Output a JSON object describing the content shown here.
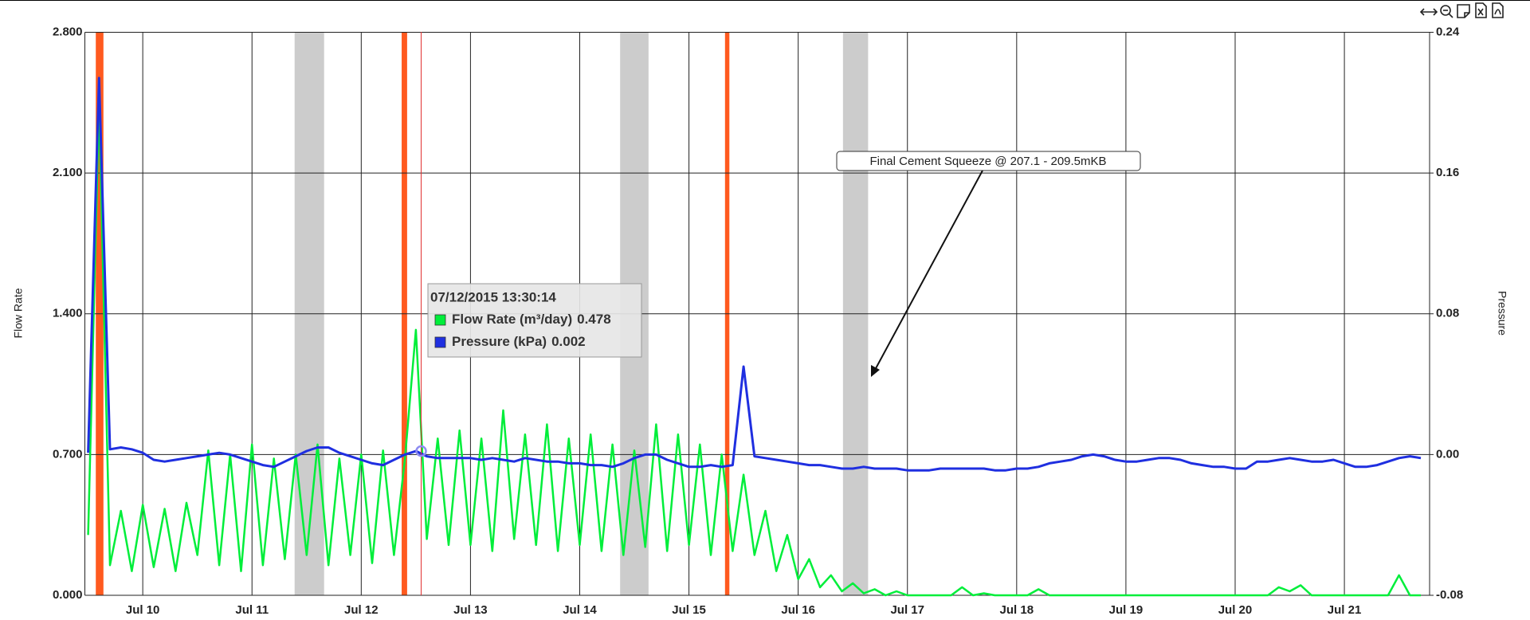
{
  "chart_data": {
    "type": "line",
    "x": [
      9.5,
      9.6,
      9.7,
      9.8,
      9.9,
      10.0,
      10.1,
      10.2,
      10.3,
      10.4,
      10.5,
      10.6,
      10.7,
      10.8,
      10.9,
      11.0,
      11.1,
      11.2,
      11.3,
      11.4,
      11.5,
      11.6,
      11.7,
      11.8,
      11.9,
      12.0,
      12.1,
      12.2,
      12.3,
      12.4,
      12.5,
      12.6,
      12.7,
      12.8,
      12.9,
      13.0,
      13.1,
      13.2,
      13.3,
      13.4,
      13.5,
      13.6,
      13.7,
      13.8,
      13.9,
      14.0,
      14.1,
      14.2,
      14.3,
      14.4,
      14.5,
      14.6,
      14.7,
      14.8,
      14.9,
      15.0,
      15.1,
      15.2,
      15.3,
      15.4,
      15.5,
      15.6,
      15.7,
      15.8,
      15.9,
      16.0,
      16.1,
      16.2,
      16.3,
      16.4,
      16.5,
      16.6,
      16.7,
      16.8,
      16.9,
      17.0,
      17.1,
      17.2,
      17.3,
      17.4,
      17.5,
      17.6,
      17.7,
      17.8,
      17.9,
      18.0,
      18.1,
      18.2,
      18.3,
      18.4,
      18.5,
      18.6,
      18.7,
      18.8,
      18.9,
      19.0,
      19.1,
      19.2,
      19.3,
      19.4,
      19.5,
      19.6,
      19.7,
      19.8,
      19.9,
      20.0,
      20.1,
      20.2,
      20.3,
      20.4,
      20.5,
      20.6,
      20.7,
      20.8,
      20.9,
      21.0,
      21.1,
      21.2,
      21.3,
      21.4,
      21.5,
      21.6,
      21.7
    ],
    "series": [
      {
        "name": "Flow Rate (m³/day)",
        "color": "#00ee3a",
        "axis": "y",
        "values": [
          0.3,
          2.45,
          0.15,
          0.42,
          0.12,
          0.45,
          0.14,
          0.43,
          0.12,
          0.46,
          0.2,
          0.72,
          0.15,
          0.7,
          0.12,
          0.75,
          0.15,
          0.68,
          0.18,
          0.7,
          0.2,
          0.75,
          0.15,
          0.68,
          0.2,
          0.7,
          0.16,
          0.72,
          0.2,
          0.68,
          1.32,
          0.28,
          0.78,
          0.25,
          0.82,
          0.25,
          0.78,
          0.22,
          0.92,
          0.28,
          0.8,
          0.25,
          0.85,
          0.22,
          0.78,
          0.25,
          0.8,
          0.22,
          0.75,
          0.2,
          0.72,
          0.24,
          0.85,
          0.22,
          0.8,
          0.25,
          0.75,
          0.2,
          0.7,
          0.22,
          0.6,
          0.2,
          0.42,
          0.12,
          0.3,
          0.08,
          0.18,
          0.04,
          0.1,
          0.02,
          0.06,
          0.01,
          0.03,
          0,
          0.02,
          0,
          0,
          0,
          0,
          0,
          0.04,
          0,
          0.01,
          0,
          0,
          0,
          0,
          0.03,
          0,
          0,
          0,
          0,
          0,
          0,
          0,
          0,
          0,
          0,
          0,
          0,
          0,
          0,
          0,
          0,
          0,
          0,
          0,
          0,
          0,
          0.04,
          0.02,
          0.05,
          0,
          0,
          0,
          0,
          0,
          0,
          0,
          0,
          0.1,
          0,
          0
        ]
      },
      {
        "name": "Pressure (kPa)",
        "color": "#1f2fe0",
        "axis": "y2",
        "values": [
          0.001,
          0.214,
          0.003,
          0.004,
          0.003,
          0.001,
          -0.003,
          -0.004,
          -0.003,
          -0.002,
          -0.001,
          0.0,
          0.001,
          0.0,
          -0.002,
          -0.004,
          -0.006,
          -0.007,
          -0.004,
          -0.001,
          0.002,
          0.004,
          0.004,
          0.001,
          -0.001,
          -0.003,
          -0.005,
          -0.006,
          -0.003,
          0.0,
          0.002,
          -0.001,
          -0.002,
          -0.002,
          -0.002,
          -0.002,
          -0.003,
          -0.002,
          -0.003,
          -0.004,
          -0.002,
          -0.003,
          -0.004,
          -0.004,
          -0.005,
          -0.005,
          -0.006,
          -0.006,
          -0.007,
          -0.005,
          -0.002,
          0.0,
          0.0,
          -0.003,
          -0.005,
          -0.007,
          -0.007,
          -0.006,
          -0.007,
          -0.006,
          0.05,
          -0.001,
          -0.002,
          -0.003,
          -0.004,
          -0.005,
          -0.006,
          -0.006,
          -0.007,
          -0.008,
          -0.008,
          -0.007,
          -0.008,
          -0.008,
          -0.008,
          -0.009,
          -0.009,
          -0.009,
          -0.008,
          -0.008,
          -0.008,
          -0.008,
          -0.008,
          -0.009,
          -0.009,
          -0.008,
          -0.008,
          -0.007,
          -0.005,
          -0.004,
          -0.003,
          -0.001,
          0.0,
          -0.001,
          -0.003,
          -0.004,
          -0.004,
          -0.003,
          -0.002,
          -0.002,
          -0.003,
          -0.005,
          -0.006,
          -0.007,
          -0.007,
          -0.008,
          -0.008,
          -0.004,
          -0.004,
          -0.003,
          -0.002,
          -0.003,
          -0.004,
          -0.004,
          -0.003,
          -0.005,
          -0.007,
          -0.007,
          -0.006,
          -0.004,
          -0.002,
          -0.001,
          -0.002
        ]
      }
    ],
    "xlim": [
      9.47,
      21.78
    ],
    "xticks": [
      {
        "value": 10,
        "label": "Jul 10"
      },
      {
        "value": 11,
        "label": "Jul 11"
      },
      {
        "value": 12,
        "label": "Jul 12"
      },
      {
        "value": 13,
        "label": "Jul 13"
      },
      {
        "value": 14,
        "label": "Jul 14"
      },
      {
        "value": 15,
        "label": "Jul 15"
      },
      {
        "value": 16,
        "label": "Jul 16"
      },
      {
        "value": 17,
        "label": "Jul 17"
      },
      {
        "value": 18,
        "label": "Jul 18"
      },
      {
        "value": 19,
        "label": "Jul 19"
      },
      {
        "value": 20,
        "label": "Jul 20"
      },
      {
        "value": 21,
        "label": "Jul 21"
      }
    ],
    "ylim": [
      0,
      2.8
    ],
    "yticks": [
      {
        "value": 0,
        "label": "0.000"
      },
      {
        "value": 0.7,
        "label": "0.700"
      },
      {
        "value": 1.4,
        "label": "1.400"
      },
      {
        "value": 2.1,
        "label": "2.100"
      },
      {
        "value": 2.8,
        "label": "2.800"
      }
    ],
    "y2lim": [
      -0.08,
      0.24
    ],
    "y2ticks": [
      -0.08,
      {
        "value": 0,
        "label": "0.00"
      },
      0.08,
      0.16,
      0.24
    ],
    "ylabel": "Flow Rate",
    "y2label": "Pressure",
    "grid": true,
    "plot_bands": [
      {
        "from": 9.57,
        "to": 9.64,
        "color": "#ff5a1f"
      },
      {
        "from": 11.39,
        "to": 11.66,
        "color": "#cccccc"
      },
      {
        "from": 12.37,
        "to": 12.42,
        "color": "#ff5a1f"
      },
      {
        "from": 14.37,
        "to": 14.63,
        "color": "#cccccc"
      },
      {
        "from": 15.33,
        "to": 15.37,
        "color": "#ff5a1f"
      },
      {
        "from": 16.41,
        "to": 16.64,
        "color": "#cccccc"
      }
    ],
    "annotation": "Final Cement Squeeze @ 207.1 - 209.5mKB",
    "tooltip": {
      "title": "07/12/2015 13:30:14",
      "values": [
        0.478,
        0.002
      ]
    }
  }
}
